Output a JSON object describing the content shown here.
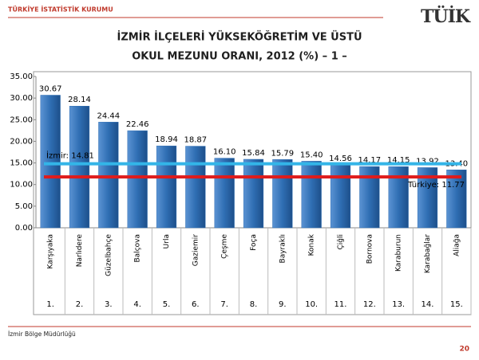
{
  "header": {
    "institution": "TÜRKİYE İSTATİSTİK KURUMU",
    "logo": "TÜİK"
  },
  "footer": {
    "office": "İzmir Bölge Müdürlüğü",
    "page": "20"
  },
  "chart_data": {
    "type": "bar",
    "title": [
      "İZMİR İLÇELERİ YÜKSEKÖĞRETİM VE ÜSTÜ",
      "OKUL MEZUNU ORANI, 2012 (%) – 1 –"
    ],
    "categories": [
      "Karşıyaka",
      "Narlıdere",
      "Güzelbahçe",
      "Balçova",
      "Urla",
      "Gaziemir",
      "Çeşme",
      "Foça",
      "Bayraklı",
      "Konak",
      "Çiğli",
      "Bornova",
      "Karaburun",
      "Karabağlar",
      "Aliağa"
    ],
    "ranks": [
      "1.",
      "2.",
      "3.",
      "4.",
      "5.",
      "6.",
      "7.",
      "8.",
      "9.",
      "10.",
      "11.",
      "12.",
      "13.",
      "14.",
      "15."
    ],
    "values": [
      30.67,
      28.14,
      24.44,
      22.46,
      18.94,
      18.87,
      16.1,
      15.84,
      15.79,
      15.4,
      14.56,
      14.17,
      14.15,
      13.92,
      13.4
    ],
    "value_labels": [
      "30.67",
      "28.14",
      "24.44",
      "22.46",
      "18.94",
      "18.87",
      "16.10",
      "15.84",
      "15.79",
      "15.40",
      "14.56",
      "14.17",
      "14.15",
      "13.92",
      "13.40"
    ],
    "color": "#2f6eb3",
    "ylim": [
      0,
      35
    ],
    "yticks": [
      {
        "value": 0,
        "label": "0.00"
      },
      {
        "value": 5,
        "label": "5.00"
      },
      {
        "value": 10,
        "label": "10.00"
      },
      {
        "value": 15,
        "label": "15.00"
      },
      {
        "value": 20,
        "label": "20.00"
      },
      {
        "value": 25,
        "label": "25.00"
      },
      {
        "value": 30,
        "label": "30.00"
      },
      {
        "value": 35,
        "label": "35.00"
      }
    ],
    "reference_lines": [
      {
        "label": "İzmir: 14.81",
        "value": 14.81,
        "color": "#33b5e8"
      },
      {
        "label": "Türkiye: 11.77",
        "value": 11.77,
        "color": "#e01b1b"
      }
    ]
  }
}
